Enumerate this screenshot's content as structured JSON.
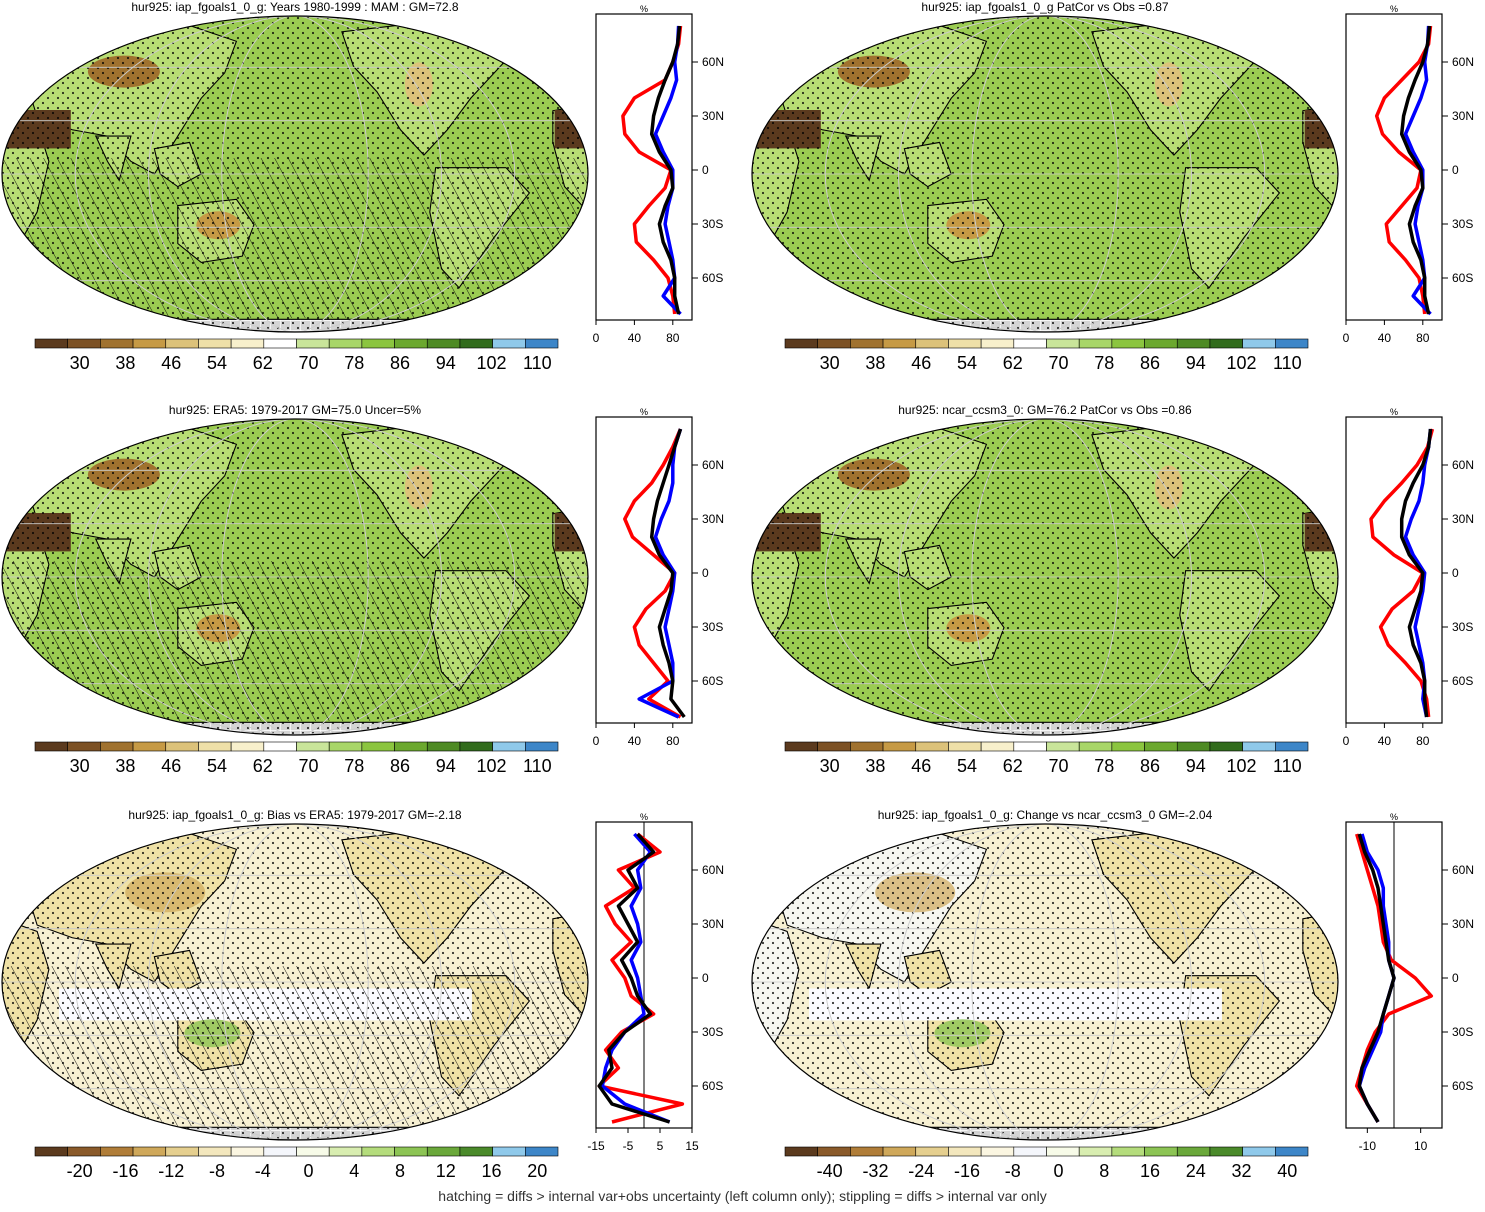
{
  "panels": [
    {
      "title": "hur925: iap_fgoals1_0_g: Years 1980-1999 : MAM : GM=72.8",
      "kind": "clim",
      "colorbar_labels": [
        "30",
        "38",
        "46",
        "54",
        "62",
        "70",
        "78",
        "86",
        "94",
        "102",
        "110"
      ],
      "profile_xticks": [
        "0",
        "40",
        "80"
      ],
      "profile_xlim": [
        0,
        100
      ]
    },
    {
      "title": "hur925: iap_fgoals1_0_g PatCor vs Obs =0.87",
      "kind": "clim",
      "colorbar_labels": [
        "30",
        "38",
        "46",
        "54",
        "62",
        "70",
        "78",
        "86",
        "94",
        "102",
        "110"
      ],
      "profile_xticks": [
        "0",
        "40",
        "80"
      ],
      "profile_xlim": [
        0,
        100
      ]
    },
    {
      "title": "hur925: ERA5: 1979-2017 GM=75.0 Uncer=5%",
      "kind": "clim",
      "colorbar_labels": [
        "30",
        "38",
        "46",
        "54",
        "62",
        "70",
        "78",
        "86",
        "94",
        "102",
        "110"
      ],
      "profile_xticks": [
        "0",
        "40",
        "80"
      ],
      "profile_xlim": [
        0,
        100
      ]
    },
    {
      "title": "hur925: ncar_ccsm3_0: GM=76.2 PatCor vs Obs =0.86",
      "kind": "clim",
      "colorbar_labels": [
        "30",
        "38",
        "46",
        "54",
        "62",
        "70",
        "78",
        "86",
        "94",
        "102",
        "110"
      ],
      "profile_xticks": [
        "0",
        "40",
        "80"
      ],
      "profile_xlim": [
        0,
        100
      ]
    },
    {
      "title": "hur925: iap_fgoals1_0_g: Bias vs ERA5: 1979-2017 GM=-2.18",
      "kind": "diff",
      "colorbar_labels": [
        "-20",
        "-16",
        "-12",
        "-8",
        "-4",
        "0",
        "4",
        "8",
        "12",
        "16",
        "20"
      ],
      "profile_xticks": [
        "-15",
        "-5",
        "5",
        "15"
      ],
      "profile_xlim": [
        -15,
        15
      ]
    },
    {
      "title": "hur925: iap_fgoals1_0_g: Change vs ncar_ccsm3_0 GM=-2.04",
      "kind": "diff",
      "colorbar_labels": [
        "-40",
        "-32",
        "-24",
        "-16",
        "-8",
        "0",
        "8",
        "16",
        "24",
        "32",
        "40"
      ],
      "profile_xticks": [
        "-10",
        "10"
      ],
      "profile_xlim": [
        -18,
        18
      ]
    }
  ],
  "profile_unit": "%",
  "lat_labels": [
    "60N",
    "30N",
    "0",
    "30S",
    "60S"
  ],
  "footer": "hatching = diffs > internal var+obs uncertainty (left column only); stippling = diffs > internal var only",
  "colors": {
    "clim": [
      "#5b3a1e",
      "#7c5125",
      "#a0722f",
      "#c69a45",
      "#dcc27a",
      "#efe0a8",
      "#f8f0cc",
      "#ffffff",
      "#c9e59a",
      "#a8d668",
      "#8bc53f",
      "#6ba82e",
      "#4e8a24",
      "#316b1c",
      "#8fc9ea",
      "#3d86c8"
    ],
    "diff": [
      "#5b3a1e",
      "#8a5a2a",
      "#b07d38",
      "#cfa85a",
      "#e5cf8f",
      "#f3e7bd",
      "#fbf6e1",
      "#f4f6fb",
      "#f7fbe8",
      "#d8edb0",
      "#b4dc7c",
      "#8cc454",
      "#6aa83a",
      "#4a8a2a",
      "#8fc9ea",
      "#3d86c8"
    ],
    "ocean_clim": "#9bcc52",
    "land_clim": "#b8dd74",
    "ocean_diff": "#f7f0d2",
    "land_diff": "#efe1a6",
    "model": "#ff0000",
    "obs": "#0000ff",
    "mean": "#000000"
  },
  "chart_data": [
    {
      "type": "line",
      "panel": 1,
      "xlabel": "%",
      "y": [
        80,
        70,
        60,
        50,
        40,
        30,
        20,
        10,
        0,
        -10,
        -20,
        -30,
        -40,
        -50,
        -60,
        -70,
        -80
      ],
      "series": [
        {
          "values": [
            88,
            86,
            80,
            72,
            40,
            28,
            30,
            45,
            78,
            72,
            55,
            40,
            42,
            60,
            75,
            80,
            82
          ]
        },
        {
          "values": [
            86,
            85,
            82,
            84,
            78,
            70,
            62,
            70,
            80,
            80,
            75,
            72,
            76,
            80,
            82,
            70,
            88
          ]
        },
        {
          "values": [
            87,
            85,
            80,
            72,
            65,
            60,
            58,
            66,
            78,
            80,
            72,
            66,
            70,
            78,
            82,
            82,
            86
          ]
        }
      ]
    },
    {
      "type": "line",
      "panel": 2,
      "xlabel": "%",
      "y": [
        80,
        70,
        60,
        50,
        40,
        30,
        20,
        10,
        0,
        -10,
        -20,
        -30,
        -40,
        -50,
        -60,
        -70,
        -80
      ],
      "series": [
        {
          "values": [
            88,
            86,
            76,
            58,
            40,
            32,
            38,
            55,
            78,
            74,
            58,
            42,
            45,
            62,
            76,
            80,
            82
          ]
        },
        {
          "values": [
            86,
            85,
            82,
            84,
            78,
            70,
            62,
            70,
            80,
            80,
            75,
            72,
            76,
            80,
            82,
            70,
            88
          ]
        },
        {
          "values": [
            87,
            85,
            80,
            72,
            65,
            60,
            58,
            66,
            78,
            80,
            72,
            66,
            70,
            78,
            82,
            82,
            86
          ]
        }
      ]
    },
    {
      "type": "line",
      "panel": 3,
      "xlabel": "%",
      "y": [
        80,
        70,
        60,
        50,
        40,
        30,
        20,
        10,
        0,
        -10,
        -20,
        -30,
        -40,
        -50,
        -60,
        -70,
        -80
      ],
      "series": [
        {
          "values": [
            88,
            80,
            70,
            58,
            40,
            30,
            38,
            60,
            82,
            72,
            52,
            40,
            45,
            60,
            75,
            55,
            88
          ]
        },
        {
          "values": [
            88,
            82,
            80,
            80,
            76,
            68,
            62,
            70,
            82,
            80,
            76,
            72,
            76,
            80,
            80,
            45,
            86
          ]
        },
        {
          "values": [
            88,
            82,
            76,
            70,
            64,
            60,
            58,
            66,
            80,
            78,
            72,
            66,
            70,
            76,
            80,
            78,
            92
          ]
        }
      ]
    },
    {
      "type": "line",
      "panel": 4,
      "xlabel": "%",
      "y": [
        80,
        70,
        60,
        50,
        40,
        30,
        20,
        10,
        0,
        -10,
        -20,
        -30,
        -40,
        -50,
        -60,
        -70,
        -80
      ],
      "series": [
        {
          "values": [
            90,
            85,
            74,
            58,
            40,
            26,
            28,
            50,
            80,
            70,
            48,
            36,
            44,
            62,
            78,
            84,
            86
          ]
        },
        {
          "values": [
            88,
            86,
            82,
            80,
            76,
            68,
            62,
            70,
            82,
            80,
            76,
            72,
            76,
            80,
            82,
            80,
            84
          ]
        },
        {
          "values": [
            88,
            86,
            80,
            70,
            62,
            58,
            58,
            66,
            80,
            78,
            72,
            66,
            70,
            78,
            82,
            82,
            84
          ]
        }
      ]
    },
    {
      "type": "line",
      "panel": 5,
      "xlabel": "%",
      "y": [
        80,
        70,
        60,
        50,
        40,
        30,
        20,
        10,
        0,
        -10,
        -20,
        -30,
        -40,
        -50,
        -60,
        -70,
        -80
      ],
      "series": [
        {
          "values": [
            -2,
            5,
            -8,
            -3,
            -12,
            -9,
            -4,
            -10,
            -6,
            -4,
            3,
            -7,
            -12,
            -8,
            -14,
            12,
            -10
          ]
        },
        {
          "values": [
            -3,
            2,
            -2,
            -1,
            -4,
            -2,
            -1,
            -4,
            -2,
            -1,
            0,
            -6,
            -10,
            -12,
            -13,
            -6,
            8
          ]
        },
        {
          "values": [
            -2,
            3,
            -5,
            -2,
            -8,
            -5,
            -2,
            -7,
            -4,
            -2,
            2,
            -6,
            -11,
            -10,
            -14,
            -10,
            8
          ]
        }
      ]
    },
    {
      "type": "line",
      "panel": 6,
      "xlabel": "%",
      "y": [
        80,
        70,
        60,
        50,
        40,
        30,
        20,
        10,
        0,
        -10,
        -20,
        -30,
        -40,
        -50,
        -60,
        -70,
        -80
      ],
      "series": [
        {
          "values": [
            -14,
            -12,
            -10,
            -8,
            -6,
            -5,
            -4,
            -1,
            8,
            14,
            -2,
            -7,
            -10,
            -12,
            -14,
            -10,
            -6
          ]
        },
        {
          "values": [
            -12,
            -10,
            -6,
            -4,
            -4,
            -3,
            -2,
            -2,
            0,
            -2,
            -4,
            -5,
            -8,
            -11,
            -13,
            -10,
            -6
          ]
        },
        {
          "values": [
            -13,
            -11,
            -8,
            -6,
            -5,
            -4,
            -3,
            -2,
            0,
            -2,
            -4,
            -6,
            -9,
            -12,
            -13,
            -10,
            -6
          ]
        }
      ]
    }
  ]
}
